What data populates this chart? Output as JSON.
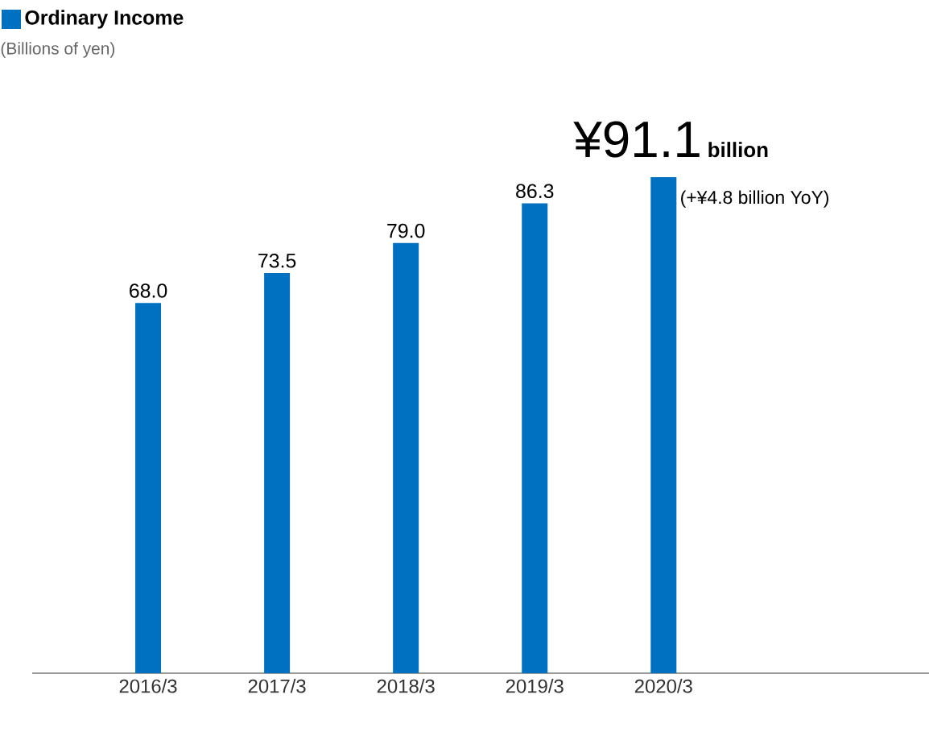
{
  "chart_data": {
    "type": "bar",
    "categories": [
      "2016/3",
      "2017/3",
      "2018/3",
      "2019/3",
      "2020/3"
    ],
    "series": [
      {
        "name": "Ordinary Income",
        "color": "#0070c0",
        "values": [
          68.0,
          73.5,
          79.0,
          86.3,
          91.1
        ],
        "value_labels": [
          "68.0",
          "73.5",
          "79.0",
          "86.3",
          "¥91.1"
        ]
      }
    ],
    "annotations": [
      "(Billions of yen)",
      "billion",
      "(+¥4.8 billion YoY)"
    ],
    "legend": "top left"
  }
}
